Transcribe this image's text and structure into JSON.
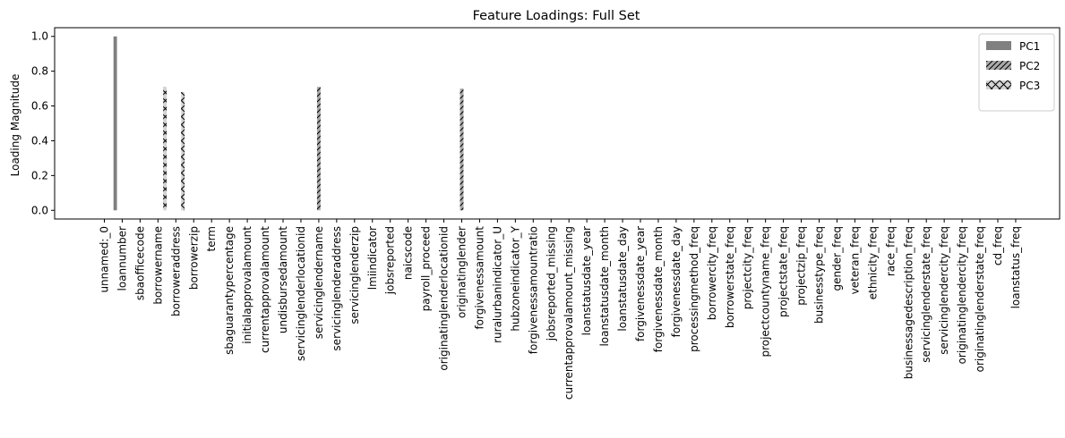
{
  "chart_data": {
    "type": "bar",
    "title": "Feature Loadings: Full Set",
    "xlabel": "",
    "ylabel": "Loading Magnitude",
    "ylim": [
      -0.05,
      1.05
    ],
    "yticks": [
      0.0,
      0.2,
      0.4,
      0.6,
      0.8,
      1.0
    ],
    "ytick_labels": [
      "0.0",
      "0.2",
      "0.4",
      "0.6",
      "0.8",
      "1.0"
    ],
    "grid": false,
    "legend_position": "top-right",
    "categories": [
      "unnamed:_0",
      "loannumber",
      "sbaofficecode",
      "borrowername",
      "borroweraddress",
      "borrowerzip",
      "term",
      "sbaguarantypercentage",
      "initialapprovalamount",
      "currentapprovalamount",
      "undisbursedamount",
      "servicinglenderlocationid",
      "servicinglendername",
      "servicinglenderaddress",
      "servicinglenderzip",
      "lmiindicator",
      "jobsreported",
      "naicscode",
      "payroll_proceed",
      "originatinglenderlocationid",
      "originatinglender",
      "forgivenessamount",
      "ruralurbanindicator_U",
      "hubzoneindicator_Y",
      "forgivenessamountratio",
      "jobsreported_missing",
      "currentapprovalamount_missing",
      "loanstatusdate_year",
      "loanstatusdate_month",
      "loanstatusdate_day",
      "forgivenessdate_year",
      "forgivenessdate_month",
      "forgivenessdate_day",
      "processingmethod_freq",
      "borrowercity_freq",
      "borrowerstate_freq",
      "projectcity_freq",
      "projectcountyname_freq",
      "projectstate_freq",
      "projectzip_freq",
      "businesstype_freq",
      "gender_freq",
      "veteran_freq",
      "ethnicity_freq",
      "race_freq",
      "businessagedescription_freq",
      "servicinglenderstate_freq",
      "servicinglendercity_freq",
      "originatinglendercity_freq",
      "originatinglenderstate_freq",
      "cd_freq",
      "loanstatus_freq"
    ],
    "series": [
      {
        "name": "PC1",
        "color": "#808080",
        "pattern": "solid",
        "values": [
          0,
          1.0,
          0,
          0,
          0,
          0,
          0,
          0,
          0,
          0,
          0,
          0,
          0,
          0,
          0,
          0,
          0,
          0,
          0,
          0,
          0,
          0,
          0,
          0,
          0,
          0,
          0,
          0,
          0,
          0,
          0,
          0,
          0,
          0,
          0,
          0,
          0,
          0,
          0,
          0,
          0,
          0,
          0,
          0,
          0,
          0,
          0,
          0,
          0,
          0,
          0,
          0
        ]
      },
      {
        "name": "PC2",
        "color": "#a9a9a9",
        "pattern": "forward-slash-hatch",
        "values": [
          0,
          0,
          0,
          0,
          0,
          0,
          0,
          0,
          0,
          0,
          0,
          0,
          0.71,
          0,
          0,
          0,
          0,
          0,
          0,
          0,
          0.7,
          0,
          0,
          0,
          0,
          0,
          0,
          0,
          0,
          0,
          0,
          0,
          0,
          0,
          0,
          0,
          0,
          0,
          0,
          0,
          0,
          0,
          0,
          0,
          0,
          0,
          0,
          0,
          0,
          0,
          0,
          0
        ]
      },
      {
        "name": "PC3",
        "color": "#d3d3d3",
        "pattern": "cross-hatch",
        "values": [
          0,
          0,
          0,
          0.71,
          0.68,
          0,
          0,
          0,
          0,
          0,
          0,
          0,
          0,
          0,
          0,
          0,
          0,
          0,
          0,
          0,
          0,
          0,
          0,
          0,
          0,
          0,
          0,
          0,
          0,
          0,
          0,
          0,
          0,
          0,
          0,
          0,
          0,
          0,
          0,
          0,
          0,
          0,
          0,
          0,
          0,
          0,
          0,
          0,
          0,
          0,
          0,
          0
        ]
      }
    ]
  }
}
